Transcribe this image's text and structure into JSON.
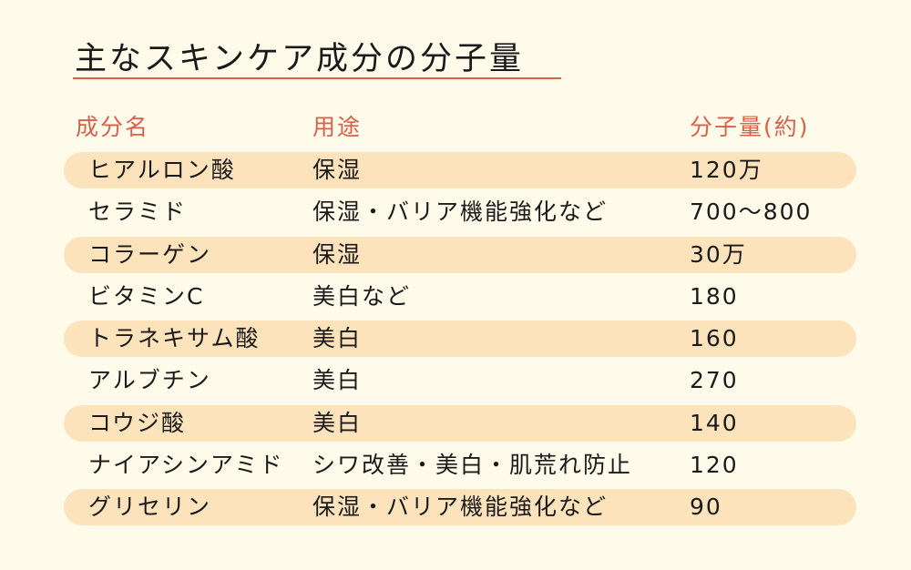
{
  "title": "主なスキンケア成分の分子量",
  "colors": {
    "accent": "#d9604b",
    "stripe": "#fde3bc",
    "background": "#fffbea"
  },
  "headers": {
    "name": "成分名",
    "use": "用途",
    "weight": "分子量(約)"
  },
  "rows": [
    {
      "name": "ヒアルロン酸",
      "use": "保湿",
      "weight": "120万"
    },
    {
      "name": "セラミド",
      "use": "保湿・バリア機能強化など",
      "weight": "700〜800"
    },
    {
      "name": "コラーゲン",
      "use": "保湿",
      "weight": "30万"
    },
    {
      "name": "ビタミンC",
      "use": "美白など",
      "weight": "180"
    },
    {
      "name": "トラネキサム酸",
      "use": "美白",
      "weight": "160"
    },
    {
      "name": "アルブチン",
      "use": "美白",
      "weight": "270"
    },
    {
      "name": "コウジ酸",
      "use": "美白",
      "weight": "140"
    },
    {
      "name": "ナイアシンアミド",
      "use": "シワ改善・美白・肌荒れ防止",
      "weight": "120"
    },
    {
      "name": "グリセリン",
      "use": "保湿・バリア機能強化など",
      "weight": "90"
    }
  ]
}
